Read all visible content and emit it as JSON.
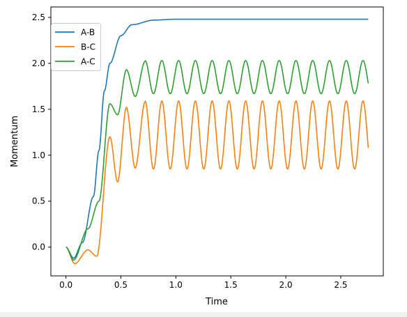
{
  "chart_data": {
    "type": "line",
    "title": "",
    "xlabel": "Time",
    "ylabel": "Momentum",
    "xlim": [
      -0.137,
      2.887
    ],
    "ylim": [
      -0.313,
      2.613
    ],
    "x_ticks": [
      0.0,
      0.5,
      1.0,
      1.5,
      2.0,
      2.5
    ],
    "x_tick_labels": [
      "0.0",
      "0.5",
      "1.0",
      "1.5",
      "2.0",
      "2.5"
    ],
    "y_ticks": [
      0.0,
      0.5,
      1.0,
      1.5,
      2.0,
      2.5
    ],
    "y_tick_labels": [
      "0.0",
      "0.5",
      "1.0",
      "1.5",
      "2.0",
      "2.5"
    ],
    "grid": false,
    "legend_position": "top-left",
    "x_range": [
      0.0,
      2.75
    ],
    "series": [
      {
        "name": "A-B",
        "color": "#1f77b4",
        "description_points": [
          [
            0.0,
            0.0
          ],
          [
            0.07,
            -0.12
          ],
          [
            0.15,
            0.05
          ],
          [
            0.25,
            0.55
          ],
          [
            0.3,
            1.05
          ],
          [
            0.35,
            1.7
          ],
          [
            0.4,
            2.0
          ],
          [
            0.5,
            2.3
          ],
          [
            0.6,
            2.42
          ],
          [
            0.8,
            2.47
          ],
          [
            1.0,
            2.48
          ],
          [
            2.75,
            2.48
          ]
        ]
      },
      {
        "name": "B-C",
        "color": "#ff7f0e",
        "description_points": [
          [
            0.0,
            0.0
          ],
          [
            0.08,
            -0.18
          ],
          [
            0.2,
            -0.03
          ],
          [
            0.28,
            -0.1
          ],
          [
            0.4,
            1.2
          ],
          [
            0.47,
            0.71
          ],
          [
            0.55,
            1.52
          ],
          [
            0.63,
            0.86
          ],
          [
            0.72,
            1.58
          ],
          [
            2.75,
            1.53
          ]
        ],
        "oscillation": {
          "center": 1.22,
          "amplitude": 0.37,
          "period": 0.1525
        }
      },
      {
        "name": "A-C",
        "color": "#2ca02c",
        "description_points": [
          [
            0.0,
            0.0
          ],
          [
            0.07,
            -0.14
          ],
          [
            0.2,
            0.2
          ],
          [
            0.3,
            0.5
          ],
          [
            0.4,
            1.56
          ],
          [
            0.47,
            1.44
          ],
          [
            0.55,
            1.93
          ],
          [
            0.63,
            1.64
          ],
          [
            0.72,
            2.02
          ],
          [
            2.75,
            2.01
          ]
        ],
        "oscillation": {
          "center": 1.85,
          "amplitude": 0.18,
          "period": 0.1525
        }
      }
    ]
  }
}
